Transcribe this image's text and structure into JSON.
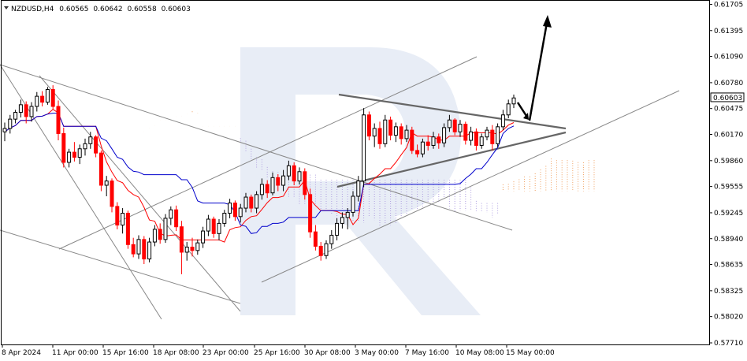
{
  "header": {
    "symbol": "NZDUSD,H4",
    "open": "0.60565",
    "high": "0.60642",
    "low": "0.60558",
    "close": "0.60603"
  },
  "colors": {
    "bull": "#000000",
    "bear": "#ff0000",
    "tenkan": "#ff0000",
    "kijun": "#0000cc",
    "cloud_up": "#f0a060",
    "cloud_down": "#b0a0e0",
    "trendline": "#888888",
    "watermark": "#e6ebf4"
  },
  "chart_data": {
    "type": "candlestick",
    "symbol": "NZDUSD,H4",
    "ylim": [
      0.5771,
      0.617
    ],
    "y_ticks": [
      "0.61705",
      "0.61395",
      "0.61090",
      "0.60780",
      "0.60475",
      "0.60170",
      "0.59860",
      "0.59555",
      "0.59245",
      "0.58940",
      "0.58635",
      "0.58325",
      "0.58020",
      "0.57710"
    ],
    "x_ticks": [
      "8 Apr 2024",
      "11 Apr 00:00",
      "15 Apr 16:00",
      "18 Apr 08:00",
      "23 Apr 00:00",
      "25 Apr 16:00",
      "30 Apr 08:00",
      "3 May 00:00",
      "7 May 16:00",
      "10 May 08:00",
      "15 May 00:00"
    ],
    "last_price": "0.60603",
    "grid": false,
    "candles": [
      [
        0.602,
        0.6031,
        0.6009,
        0.6024
      ],
      [
        0.6024,
        0.604,
        0.6018,
        0.6035
      ],
      [
        0.6035,
        0.6046,
        0.603,
        0.6043
      ],
      [
        0.6043,
        0.6058,
        0.6037,
        0.6052
      ],
      [
        0.6052,
        0.6056,
        0.603,
        0.6038
      ],
      [
        0.6038,
        0.6055,
        0.6032,
        0.605
      ],
      [
        0.605,
        0.6067,
        0.6044,
        0.6062
      ],
      [
        0.6062,
        0.6068,
        0.605,
        0.6055
      ],
      [
        0.6055,
        0.6073,
        0.6052,
        0.607
      ],
      [
        0.607,
        0.6075,
        0.6046,
        0.605
      ],
      [
        0.605,
        0.6057,
        0.601,
        0.6018
      ],
      [
        0.6018,
        0.6025,
        0.5978,
        0.5984
      ],
      [
        0.5984,
        0.6,
        0.5978,
        0.5996
      ],
      [
        0.5996,
        0.6008,
        0.5985,
        0.599
      ],
      [
        0.599,
        0.6005,
        0.5982,
        0.6
      ],
      [
        0.6,
        0.6012,
        0.5992,
        0.6006
      ],
      [
        0.6006,
        0.602,
        0.6,
        0.6014
      ],
      [
        0.6014,
        0.6016,
        0.599,
        0.5995
      ],
      [
        0.5995,
        0.5998,
        0.595,
        0.5957
      ],
      [
        0.5957,
        0.5968,
        0.5944,
        0.5962
      ],
      [
        0.5962,
        0.5965,
        0.5925,
        0.5932
      ],
      [
        0.5932,
        0.5937,
        0.5905,
        0.591
      ],
      [
        0.591,
        0.593,
        0.59,
        0.5924
      ],
      [
        0.5924,
        0.5927,
        0.5882,
        0.5887
      ],
      [
        0.5887,
        0.5895,
        0.5872,
        0.5876
      ],
      [
        0.5876,
        0.5898,
        0.587,
        0.5893
      ],
      [
        0.5893,
        0.5897,
        0.5864,
        0.587
      ],
      [
        0.587,
        0.5895,
        0.5866,
        0.589
      ],
      [
        0.589,
        0.591,
        0.5885,
        0.5905
      ],
      [
        0.5905,
        0.5912,
        0.5888,
        0.5893
      ],
      [
        0.5893,
        0.5923,
        0.5889,
        0.5918
      ],
      [
        0.5918,
        0.5932,
        0.591,
        0.5928
      ],
      [
        0.5928,
        0.5933,
        0.5903,
        0.5908
      ],
      [
        0.5908,
        0.5915,
        0.5852,
        0.5878
      ],
      [
        0.5878,
        0.589,
        0.5868,
        0.5884
      ],
      [
        0.5884,
        0.5895,
        0.5873,
        0.588
      ],
      [
        0.588,
        0.5893,
        0.5875,
        0.5889
      ],
      [
        0.5889,
        0.5908,
        0.5883,
        0.5903
      ],
      [
        0.5903,
        0.5922,
        0.5897,
        0.5917
      ],
      [
        0.5917,
        0.592,
        0.5895,
        0.59
      ],
      [
        0.59,
        0.5917,
        0.5892,
        0.5912
      ],
      [
        0.5912,
        0.5928,
        0.5908,
        0.5924
      ],
      [
        0.5924,
        0.5941,
        0.5918,
        0.5936
      ],
      [
        0.5936,
        0.5939,
        0.5915,
        0.592
      ],
      [
        0.592,
        0.5935,
        0.5913,
        0.593
      ],
      [
        0.593,
        0.5948,
        0.5925,
        0.5943
      ],
      [
        0.5943,
        0.5946,
        0.5925,
        0.593
      ],
      [
        0.593,
        0.595,
        0.5924,
        0.5946
      ],
      [
        0.5946,
        0.5965,
        0.594,
        0.5958
      ],
      [
        0.5958,
        0.5963,
        0.5942,
        0.5948
      ],
      [
        0.5948,
        0.5972,
        0.5945,
        0.5966
      ],
      [
        0.5966,
        0.597,
        0.595,
        0.5957
      ],
      [
        0.5957,
        0.5975,
        0.595,
        0.5968
      ],
      [
        0.5968,
        0.5986,
        0.5963,
        0.598
      ],
      [
        0.598,
        0.5984,
        0.5957,
        0.5962
      ],
      [
        0.5962,
        0.5978,
        0.5958,
        0.5973
      ],
      [
        0.5973,
        0.5977,
        0.594,
        0.5946
      ],
      [
        0.5946,
        0.5953,
        0.5895,
        0.5902
      ],
      [
        0.5902,
        0.591,
        0.588,
        0.5885
      ],
      [
        0.5885,
        0.589,
        0.5868,
        0.5874
      ],
      [
        0.5874,
        0.5892,
        0.587,
        0.5888
      ],
      [
        0.5888,
        0.5904,
        0.5882,
        0.5898
      ],
      [
        0.5898,
        0.5918,
        0.5892,
        0.5912
      ],
      [
        0.5912,
        0.5925,
        0.5906,
        0.5919
      ],
      [
        0.5919,
        0.593,
        0.5905,
        0.5925
      ],
      [
        0.5925,
        0.595,
        0.592,
        0.5944
      ],
      [
        0.5944,
        0.5968,
        0.5938,
        0.5962
      ],
      [
        0.5962,
        0.6048,
        0.5955,
        0.604
      ],
      [
        0.604,
        0.6044,
        0.601,
        0.6015
      ],
      [
        0.6015,
        0.603,
        0.6002,
        0.6024
      ],
      [
        0.6024,
        0.6032,
        0.6,
        0.6006
      ],
      [
        0.6006,
        0.604,
        0.6002,
        0.6034
      ],
      [
        0.6034,
        0.6038,
        0.601,
        0.6016
      ],
      [
        0.6016,
        0.6031,
        0.6008,
        0.6026
      ],
      [
        0.6026,
        0.603,
        0.6005,
        0.6012
      ],
      [
        0.6012,
        0.6028,
        0.6008,
        0.6022
      ],
      [
        0.6022,
        0.6026,
        0.5994,
        0.5998
      ],
      [
        0.5998,
        0.6005,
        0.599,
        0.5994
      ],
      [
        0.5994,
        0.6012,
        0.599,
        0.6008
      ],
      [
        0.6008,
        0.6016,
        0.5998,
        0.6004
      ],
      [
        0.6004,
        0.602,
        0.6,
        0.6014
      ],
      [
        0.6014,
        0.6018,
        0.6,
        0.6007
      ],
      [
        0.6007,
        0.603,
        0.6002,
        0.6025
      ],
      [
        0.6025,
        0.604,
        0.602,
        0.6034
      ],
      [
        0.6034,
        0.6036,
        0.6016,
        0.602
      ],
      [
        0.602,
        0.6034,
        0.6014,
        0.6029
      ],
      [
        0.6029,
        0.6032,
        0.6005,
        0.601
      ],
      [
        0.601,
        0.6026,
        0.6004,
        0.602
      ],
      [
        0.602,
        0.6024,
        0.5998,
        0.6004
      ],
      [
        0.6004,
        0.6018,
        0.6,
        0.6014
      ],
      [
        0.6014,
        0.6026,
        0.601,
        0.6022
      ],
      [
        0.6022,
        0.6028,
        0.5998,
        0.6006
      ],
      [
        0.6006,
        0.603,
        0.6002,
        0.6026
      ],
      [
        0.6026,
        0.6046,
        0.6022,
        0.604
      ],
      [
        0.604,
        0.6058,
        0.6036,
        0.6053
      ],
      [
        0.6053,
        0.6064,
        0.6048,
        0.606
      ]
    ]
  },
  "overlays": {
    "arrow_target": [
      0.6156
    ],
    "triangle_apex": [
      0.6022
    ]
  }
}
